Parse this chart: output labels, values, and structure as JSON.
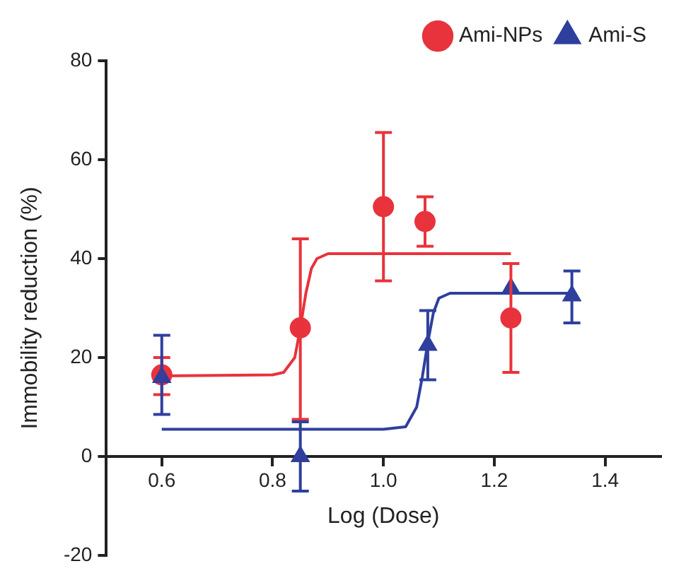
{
  "chart_data": {
    "type": "scatter",
    "xlabel": "Log (Dose)",
    "ylabel": "Immobility reduction (%)",
    "xlim": [
      0.5,
      1.5
    ],
    "xticks": [
      0.6,
      0.8,
      {
        "value": 1,
        "label": "1.0"
      },
      1.2,
      1.4
    ],
    "ylim": [
      -20,
      80
    ],
    "yticks": [
      -20,
      0,
      20,
      40,
      60,
      80
    ],
    "grid": false,
    "legend": "top right",
    "series": [
      {
        "name": "Ami-NPs",
        "type": "scatter",
        "marker": "circle",
        "color": "#e8333c",
        "x": [
          0.6,
          0.85,
          1.0,
          1.075,
          1.23
        ],
        "values": [
          16.5,
          26,
          50.5,
          47.5,
          28
        ],
        "errors": [
          [
            12.5,
            20
          ],
          [
            7.5,
            44
          ],
          [
            35.5,
            65.5
          ],
          [
            42.5,
            52.5
          ],
          [
            17,
            39
          ]
        ]
      },
      {
        "name": "Ami-S",
        "type": "scatter",
        "marker": "triangle",
        "color": "#2e3f9e",
        "x": [
          0.6,
          0.85,
          1.08,
          1.23,
          1.34
        ],
        "values": [
          16,
          0,
          22.5,
          34,
          32.5
        ],
        "errors": [
          [
            8.5,
            24.5
          ],
          [
            -7,
            7
          ],
          [
            15.5,
            29.5
          ],
          null,
          [
            27,
            37.5
          ]
        ]
      },
      {
        "type": "line",
        "marker": "none",
        "color": "#e8333c",
        "x": [
          0.6,
          0.8,
          0.82,
          0.84,
          0.85,
          0.86,
          0.87,
          0.88,
          0.9,
          1.0,
          1.23
        ],
        "values": [
          16.3,
          16.5,
          17,
          20,
          26,
          33,
          38,
          40,
          41,
          41,
          41
        ]
      },
      {
        "type": "line",
        "marker": "none",
        "color": "#2e3f9e",
        "x": [
          0.6,
          1.0,
          1.04,
          1.06,
          1.07,
          1.08,
          1.09,
          1.1,
          1.12,
          1.34
        ],
        "values": [
          5.5,
          5.5,
          6,
          10,
          16,
          23,
          29,
          32,
          33,
          33
        ]
      }
    ]
  }
}
